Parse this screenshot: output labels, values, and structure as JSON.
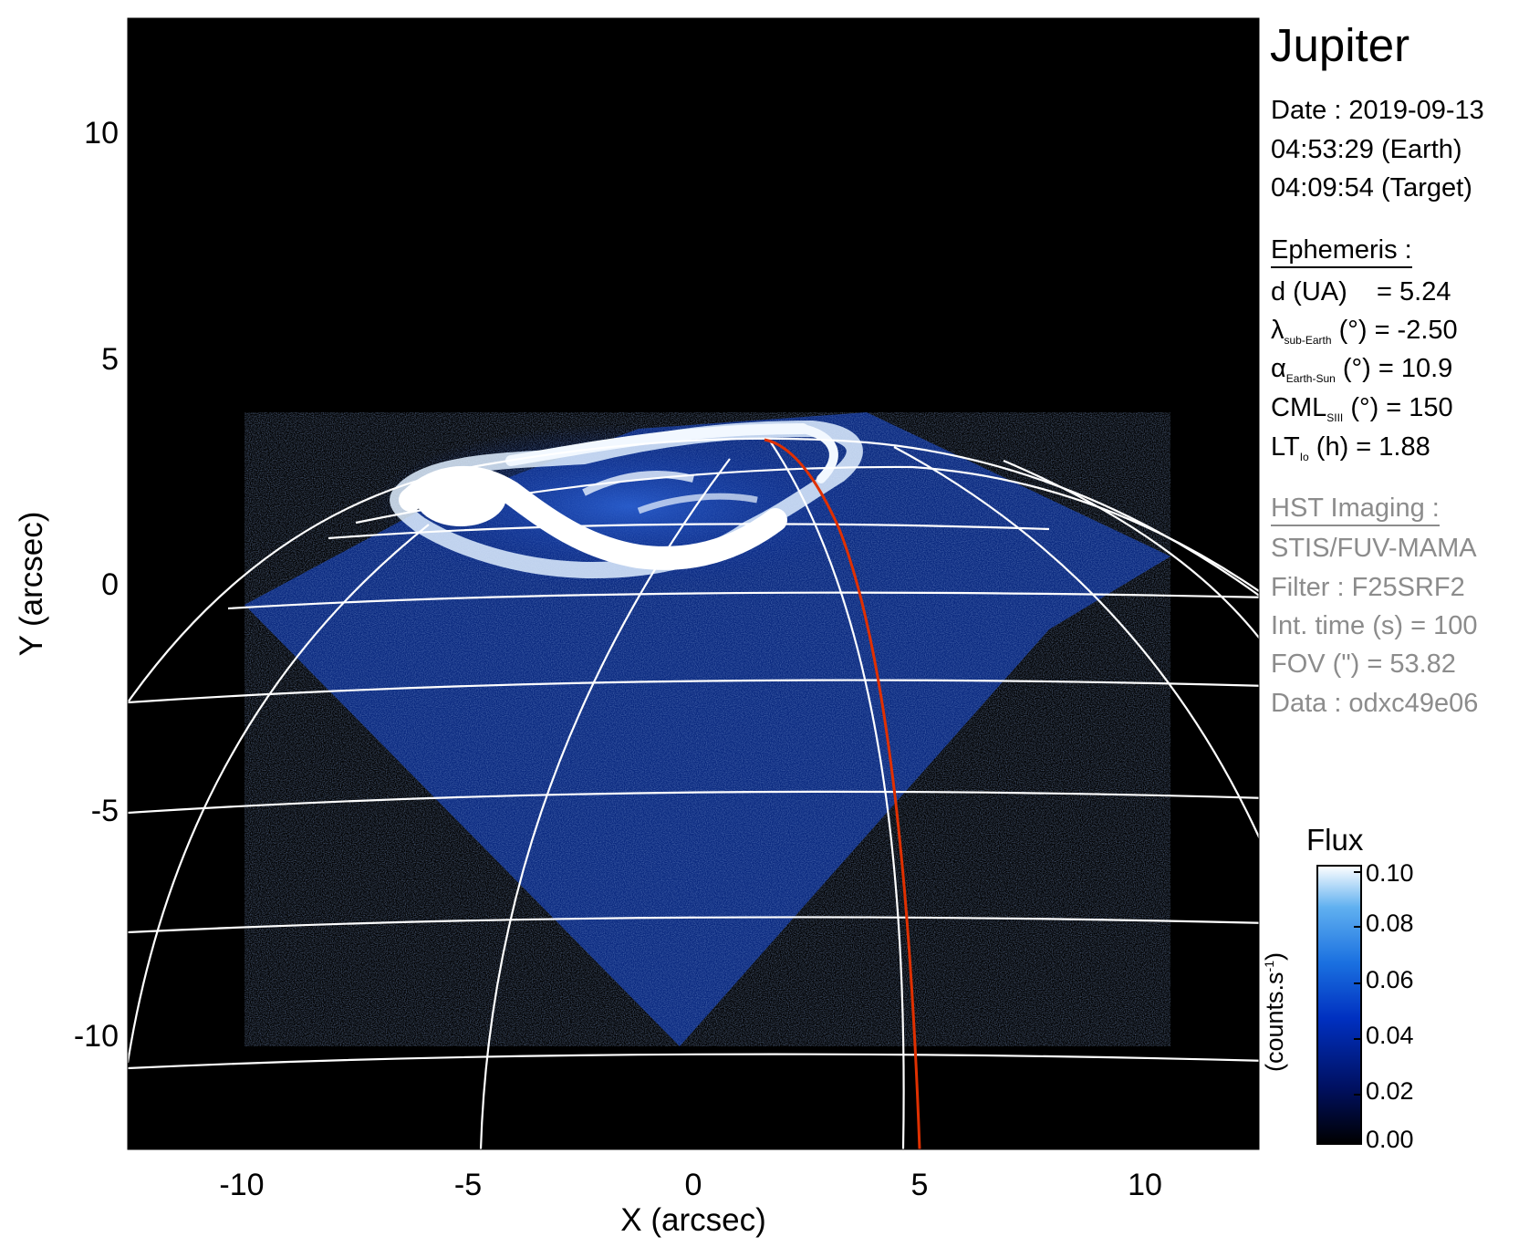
{
  "figure": {
    "title": "Jupiter",
    "xlabel": "X (arcsec)",
    "ylabel": "Y (arcsec)",
    "xlim": [
      -12.5,
      12.5
    ],
    "ylim": [
      -12.5,
      12.5
    ],
    "x_ticks": [
      "-10",
      "-5",
      "0",
      "5",
      "10"
    ],
    "y_ticks": [
      "10",
      "5",
      "0",
      "-5",
      "-10"
    ]
  },
  "info": {
    "date": "Date : 2019-09-13",
    "time_earth": "04:53:29 (Earth)",
    "time_target": "04:09:54 (Target)"
  },
  "ephemeris": {
    "heading": "Ephemeris :",
    "d_label": "d (UA)",
    "d_value": "= 5.24",
    "lambda_symbol": "λ",
    "lambda_sub": "sub-Earth",
    "lambda_rest": "(°) = -2.50",
    "alpha_symbol": "α",
    "alpha_sub": "Earth-Sun",
    "alpha_rest": "(°) = 10.9",
    "cml_label": "CML",
    "cml_sub": "SIII",
    "cml_rest": "(°) = 150",
    "lt_label": "LT",
    "lt_sub": "Io",
    "lt_rest": "(h) = 1.88"
  },
  "hst": {
    "heading": "HST Imaging :",
    "instrument": "STIS/FUV-MAMA",
    "filter": "Filter : F25SRF2",
    "int_time": "Int. time (s) = 100",
    "fov": "FOV (\") = 53.82",
    "data": "Data : odxc49e06"
  },
  "colorbar": {
    "title": "Flux",
    "unit": "(counts.s",
    "unit_sup": "-1",
    "unit_close": ")",
    "ticks": [
      "0.10",
      "0.08",
      "0.06",
      "0.04",
      "0.02",
      "0.00"
    ],
    "colors": [
      "#000000",
      "#001060",
      "#0030c0",
      "#1a70e0",
      "#60b0f0",
      "#ffffff"
    ]
  },
  "colors": {
    "background": "#000000",
    "grid": "#ffffff",
    "io_footpath": "#e03000"
  }
}
